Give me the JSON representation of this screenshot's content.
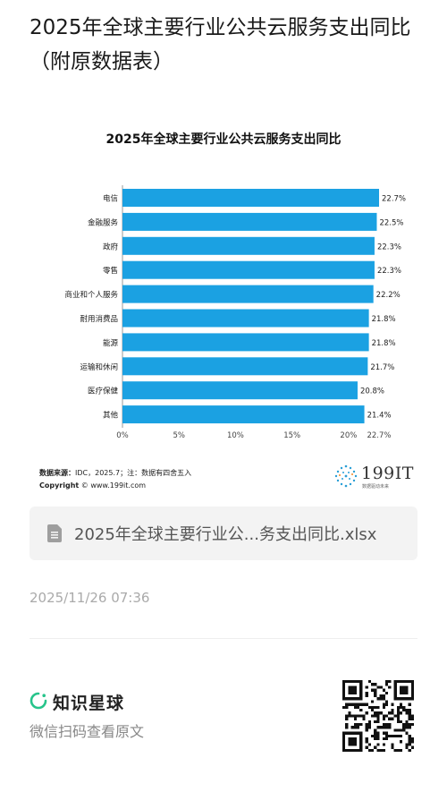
{
  "page_title": "2025年全球主要行业公共云服务支出同比（附原数据表）",
  "chart_data": {
    "type": "bar",
    "orientation": "horizontal",
    "title": "2025年全球主要行业公共云服务支出同比",
    "categories": [
      "电信",
      "金融服务",
      "政府",
      "零售",
      "商业和个人服务",
      "耐用消费品",
      "能源",
      "运输和休闲",
      "医疗保健",
      "其他"
    ],
    "values": [
      22.7,
      22.5,
      22.3,
      22.3,
      22.2,
      21.8,
      21.8,
      21.7,
      20.8,
      21.4
    ],
    "value_labels": [
      "22.7%",
      "22.5%",
      "22.3%",
      "22.3%",
      "22.2%",
      "21.8%",
      "21.8%",
      "21.7%",
      "20.8%",
      "21.4%"
    ],
    "x_ticks": [
      "0%",
      "5%",
      "10%",
      "15%",
      "20%",
      "22.7%"
    ],
    "x_tick_values": [
      0,
      5,
      10,
      15,
      20,
      22.7
    ],
    "xlim": [
      0,
      22.7
    ],
    "bar_color": "#1ba1e2",
    "grid": false
  },
  "source": {
    "label": "数据来源：",
    "text": "IDC，2025.7；注：数据有四舍五入"
  },
  "copyright": {
    "label": "Copyright",
    "text": "© www.199it.com"
  },
  "logo": {
    "name": "199IT",
    "tagline": "数据驱动未来"
  },
  "attachment": {
    "icon": "spreadsheet-file-icon",
    "file_name": "2025年全球主要行业公...务支出同比.xlsx"
  },
  "timestamp": "2025/11/26 07:36",
  "footer": {
    "brand_name": "知识星球",
    "brand_color": "#27c48b",
    "hint": "微信扫码查看原文"
  }
}
